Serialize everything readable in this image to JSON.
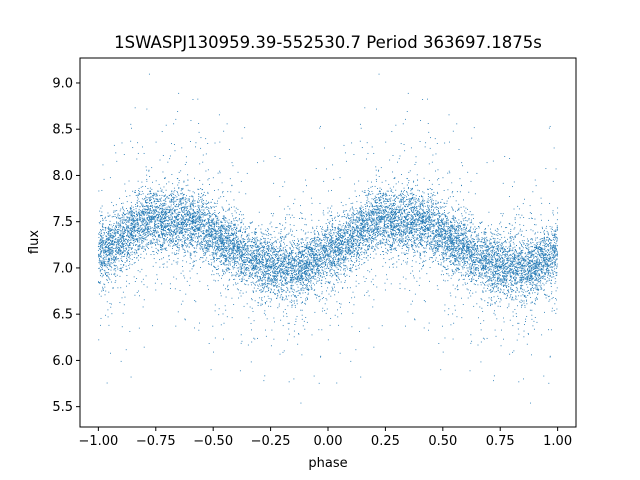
{
  "chart_data": {
    "type": "scatter",
    "title": "1SWASPJ130959.39-552530.7 Period 363697.1875s",
    "xlabel": "phase",
    "ylabel": "flux",
    "xlim": [
      -1.08,
      1.08
    ],
    "ylim": [
      5.28,
      9.27
    ],
    "xticks": [
      -1.0,
      -0.75,
      -0.5,
      -0.25,
      0.0,
      0.25,
      0.5,
      0.75,
      1.0
    ],
    "xtick_labels": [
      "−1.00",
      "−0.75",
      "−0.50",
      "−0.25",
      "0.00",
      "0.25",
      "0.50",
      "0.75",
      "1.00"
    ],
    "yticks": [
      5.5,
      6.0,
      6.5,
      7.0,
      7.5,
      8.0,
      8.5,
      9.0
    ],
    "ytick_labels": [
      "5.5",
      "6.0",
      "6.5",
      "7.0",
      "7.5",
      "8.0",
      "8.5",
      "9.0"
    ],
    "grid": false,
    "marker_color": "#1f77b4",
    "phase_range": [
      -1.0,
      1.0
    ],
    "light_curve_profile": {
      "phase": [
        0.0,
        0.1,
        0.2,
        0.25,
        0.3,
        0.4,
        0.45,
        0.5,
        0.6,
        0.7,
        0.8,
        0.9,
        1.0
      ],
      "flux": [
        7.15,
        7.3,
        7.5,
        7.55,
        7.48,
        7.5,
        7.45,
        7.35,
        7.2,
        7.05,
        7.0,
        7.02,
        7.15
      ]
    }
  }
}
